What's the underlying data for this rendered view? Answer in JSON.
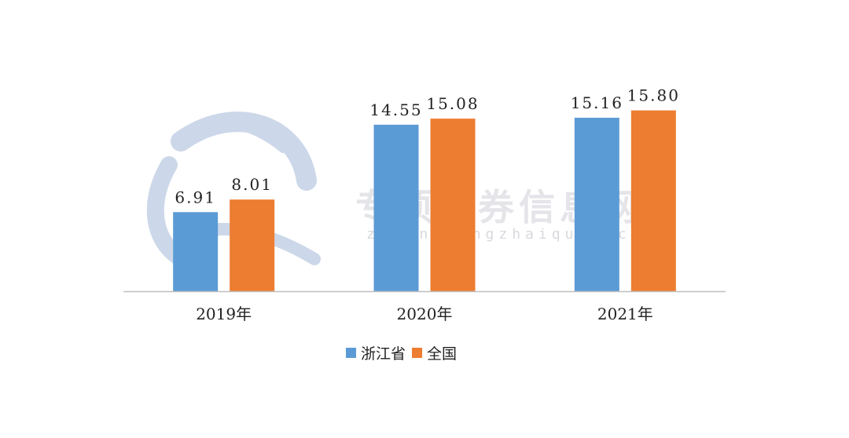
{
  "watermark": {
    "text": "专项债券信息网",
    "url": "zhuanxiangzhaiquan.com"
  },
  "chart_data": {
    "type": "bar",
    "categories": [
      "2019年",
      "2020年",
      "2021年"
    ],
    "series": [
      {
        "name": "浙江省",
        "values": [
          6.91,
          14.55,
          15.16
        ],
        "color": "#5B9BD5",
        "labels": [
          "6.91",
          "14.55",
          "15.16"
        ]
      },
      {
        "name": "全国",
        "values": [
          8.01,
          15.08,
          15.8
        ],
        "color": "#ED7D31",
        "labels": [
          "8.01",
          "15.08",
          "15.80"
        ]
      }
    ],
    "title": "",
    "xlabel": "",
    "ylabel": "",
    "ylim": [
      0,
      18
    ],
    "grid": false,
    "legend_position": "bottom"
  }
}
